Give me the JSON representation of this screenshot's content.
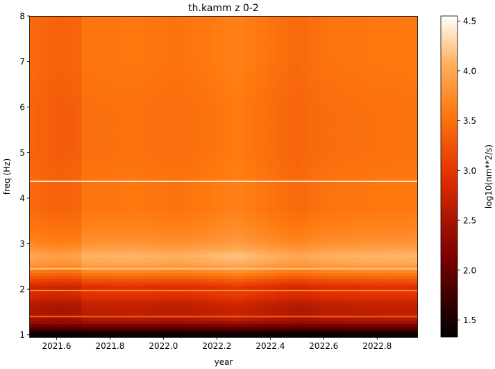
{
  "chart_data": {
    "type": "heatmap",
    "title": "th.kamm z 0-2",
    "xlabel": "year",
    "ylabel": "freq (Hz)",
    "colorbar_label": "log10(nm**2/s)",
    "colormap": "gist_heat",
    "xlim": [
      2021.5,
      2022.95
    ],
    "ylim": [
      0.95,
      8.0
    ],
    "clim": [
      1.33,
      4.55
    ],
    "x_ticks": [
      2021.6,
      2021.8,
      2022.0,
      2022.2,
      2022.4,
      2022.6,
      2022.8
    ],
    "x_tick_labels": [
      "2021.6",
      "2021.8",
      "2022.0",
      "2022.2",
      "2022.4",
      "2022.6",
      "2022.8"
    ],
    "y_ticks": [
      1,
      2,
      3,
      4,
      5,
      6,
      7,
      8
    ],
    "y_tick_labels": [
      "1",
      "2",
      "3",
      "4",
      "5",
      "6",
      "7",
      "8"
    ],
    "colorbar_ticks": [
      1.5,
      2.0,
      2.5,
      3.0,
      3.5,
      4.0,
      4.5
    ],
    "colorbar_tick_labels": [
      "1.5",
      "2.0",
      "2.5",
      "3.0",
      "3.5",
      "4.0",
      "4.5"
    ],
    "frequency_profile": [
      {
        "freq": 0.95,
        "value": 1.4
      },
      {
        "freq": 1.05,
        "value": 1.45
      },
      {
        "freq": 1.15,
        "value": 1.9
      },
      {
        "freq": 1.3,
        "value": 2.45
      },
      {
        "freq": 1.45,
        "value": 2.6
      },
      {
        "freq": 1.6,
        "value": 2.6
      },
      {
        "freq": 1.75,
        "value": 2.75
      },
      {
        "freq": 1.9,
        "value": 2.95
      },
      {
        "freq": 2.05,
        "value": 2.85
      },
      {
        "freq": 2.2,
        "value": 3.2
      },
      {
        "freq": 2.4,
        "value": 3.65
      },
      {
        "freq": 2.6,
        "value": 3.95
      },
      {
        "freq": 2.75,
        "value": 4.05
      },
      {
        "freq": 2.9,
        "value": 3.85
      },
      {
        "freq": 3.1,
        "value": 3.7
      },
      {
        "freq": 3.4,
        "value": 3.6
      },
      {
        "freq": 3.8,
        "value": 3.5
      },
      {
        "freq": 4.3,
        "value": 3.5
      },
      {
        "freq": 5.0,
        "value": 3.45
      },
      {
        "freq": 6.0,
        "value": 3.45
      },
      {
        "freq": 7.0,
        "value": 3.5
      },
      {
        "freq": 8.0,
        "value": 3.5
      }
    ],
    "time_profile": [
      {
        "year": 2021.5,
        "offset": -0.05
      },
      {
        "year": 2021.6,
        "offset": -0.12
      },
      {
        "year": 2021.68,
        "offset": -0.1
      },
      {
        "year": 2021.7,
        "offset": 0.04
      },
      {
        "year": 2021.9,
        "offset": 0.06
      },
      {
        "year": 2022.05,
        "offset": 0.02
      },
      {
        "year": 2022.15,
        "offset": 0.06
      },
      {
        "year": 2022.28,
        "offset": 0.14
      },
      {
        "year": 2022.38,
        "offset": 0.04
      },
      {
        "year": 2022.5,
        "offset": -0.06
      },
      {
        "year": 2022.6,
        "offset": 0.02
      },
      {
        "year": 2022.75,
        "offset": 0.05
      },
      {
        "year": 2022.95,
        "offset": 0.07
      }
    ],
    "spectral_lines": [
      {
        "freq": 4.37,
        "value": 4.4
      },
      {
        "freq": 2.45,
        "value": 4.2
      },
      {
        "freq": 1.97,
        "value": 3.8
      },
      {
        "freq": 1.4,
        "value": 3.3
      }
    ]
  }
}
